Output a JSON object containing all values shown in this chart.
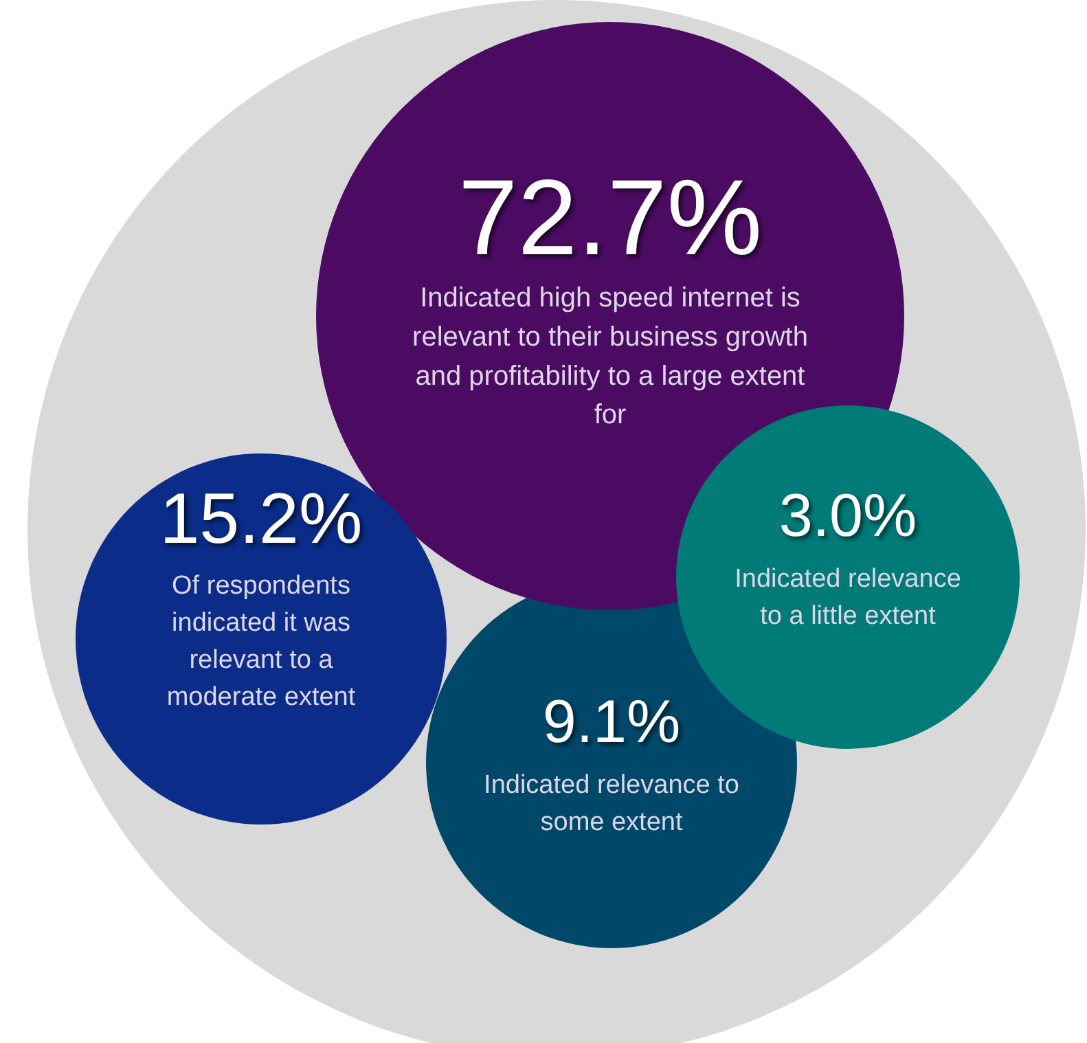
{
  "chart_data": {
    "type": "other",
    "categories": [
      "Indicated high speed internet is relevant to their business growth and profitability to a large extent for",
      "Of respondents indicated it was relevant to a moderate extent",
      "Indicated relevance to a little extent",
      "Indicated relevance to some extent"
    ],
    "values": [
      72.7,
      15.2,
      3.0,
      9.1
    ],
    "value_labels": [
      "72.7%",
      "15.2%",
      "3.0%",
      "9.1%"
    ],
    "colors": [
      "#4b0b62",
      "#0b2c88",
      "#007b78",
      "#00486a"
    ]
  }
}
